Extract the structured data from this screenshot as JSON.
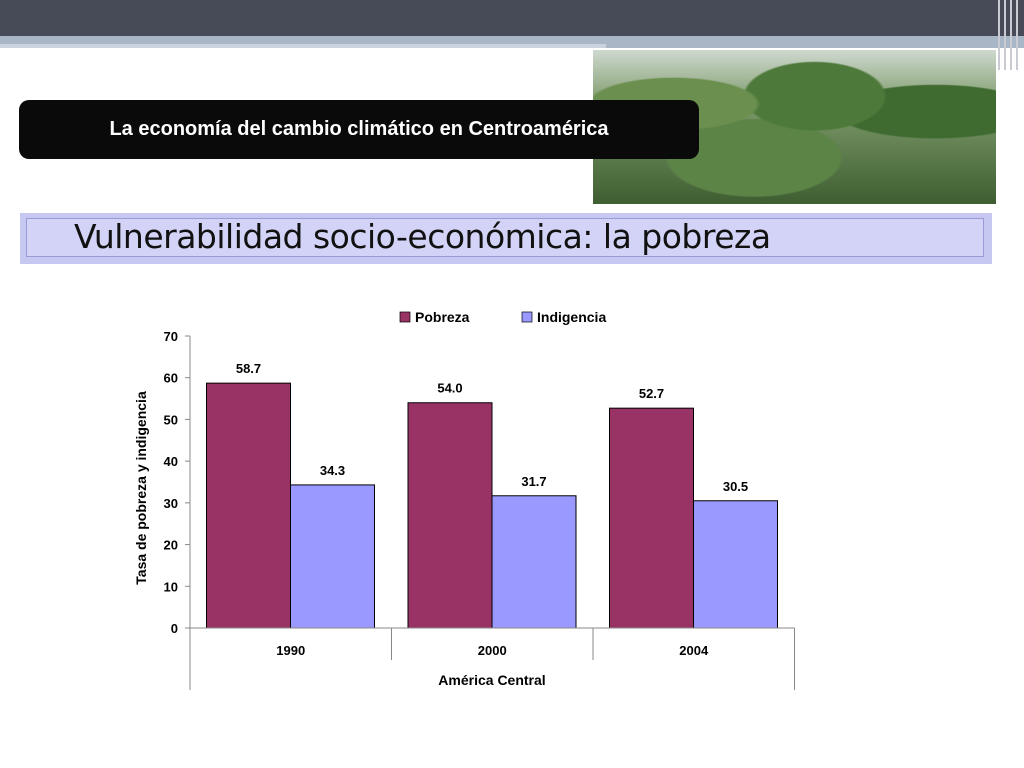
{
  "header": {
    "title": "La economía del cambio climático en Centroamérica",
    "slide_title": "Vulnerabilidad socio-económica: la pobreza"
  },
  "colors": {
    "pobreza": "#993366",
    "indigencia": "#9999ff"
  },
  "chart_data": {
    "type": "bar",
    "categories": [
      "1990",
      "2000",
      "2004"
    ],
    "group_label": "América Central",
    "series": [
      {
        "name": "Pobreza",
        "values": [
          58.7,
          54.0,
          52.7
        ],
        "labels": [
          "58.7",
          "54.0",
          "52.7"
        ]
      },
      {
        "name": "Indigencia",
        "values": [
          34.3,
          31.7,
          30.5
        ],
        "labels": [
          "34.3",
          "31.7",
          "30.5"
        ]
      }
    ],
    "ylabel": "Tasa de pobreza y indigencia",
    "ylim": [
      0,
      70
    ],
    "yticks": [
      "0",
      "10",
      "20",
      "30",
      "40",
      "50",
      "60",
      "70"
    ],
    "legend": "top",
    "grid": false
  }
}
